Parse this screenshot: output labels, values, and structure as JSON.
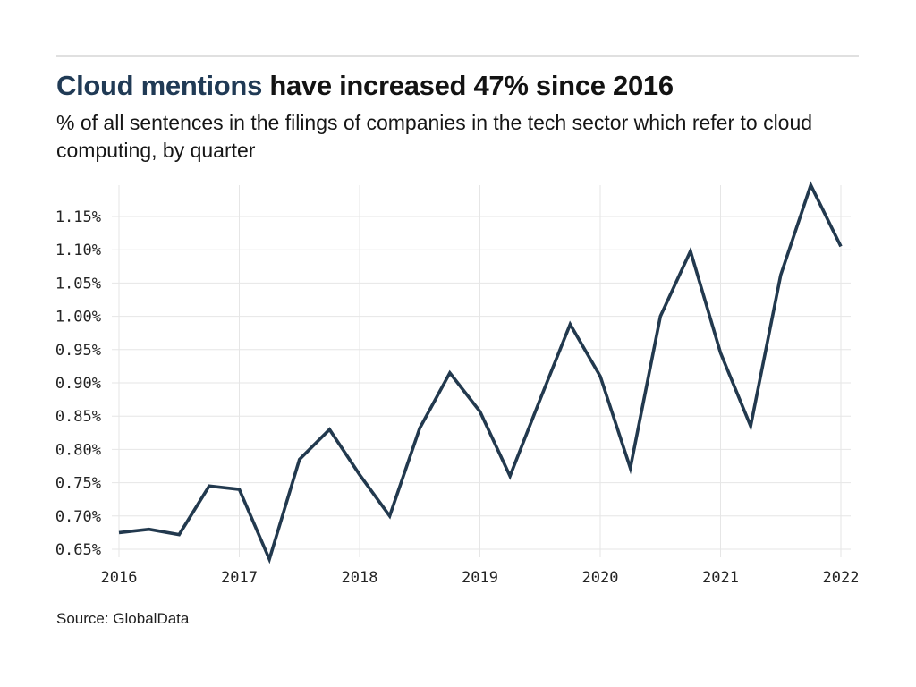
{
  "header": {
    "title_accent": "Cloud mentions",
    "title_rest": " have increased 47% since 2016",
    "subtitle": "% of all sentences in the filings of companies in the tech sector which refer to cloud computing, by quarter",
    "accent_color": "#203a55",
    "text_color": "#131313"
  },
  "footer": {
    "source": "Source: GlobalData"
  },
  "chart_data": {
    "type": "line",
    "title": "Cloud mentions have increased 47% since 2016",
    "subtitle": "% of all sentences in the filings of companies in the tech sector which refer to cloud computing, by quarter",
    "source": "Source: GlobalData",
    "categories": [
      "Q1 2016",
      "Q2 2016",
      "Q3 2016",
      "Q4 2016",
      "Q1 2017",
      "Q2 2017",
      "Q3 2017",
      "Q4 2017",
      "Q1 2018",
      "Q2 2018",
      "Q3 2018",
      "Q4 2018",
      "Q1 2019",
      "Q2 2019",
      "Q3 2019",
      "Q4 2019",
      "Q1 2020",
      "Q2 2020",
      "Q3 2020",
      "Q4 2020",
      "Q1 2021",
      "Q2 2021",
      "Q3 2021",
      "Q4 2021",
      "Q1 2022"
    ],
    "values": [
      0.675,
      0.68,
      0.672,
      0.745,
      0.74,
      0.635,
      0.785,
      0.83,
      0.762,
      0.7,
      0.832,
      0.915,
      0.857,
      0.76,
      0.875,
      0.988,
      0.91,
      0.772,
      1.0,
      1.098,
      0.945,
      0.835,
      1.062,
      1.197,
      1.105
    ],
    "unit": "%",
    "xlabel": "",
    "ylabel": "",
    "xticks": [
      2016,
      2017,
      2018,
      2019,
      2020,
      2021,
      2022
    ],
    "yticks": [
      0.65,
      0.7,
      0.75,
      0.8,
      0.85,
      0.9,
      0.95,
      1.0,
      1.05,
      1.1,
      1.15
    ],
    "ylim": [
      0.627,
      1.2
    ],
    "grid": "on",
    "legend": "none",
    "line_color": "#22394e",
    "grid_color": "#e6e6e6",
    "tick_color": "#242424"
  }
}
